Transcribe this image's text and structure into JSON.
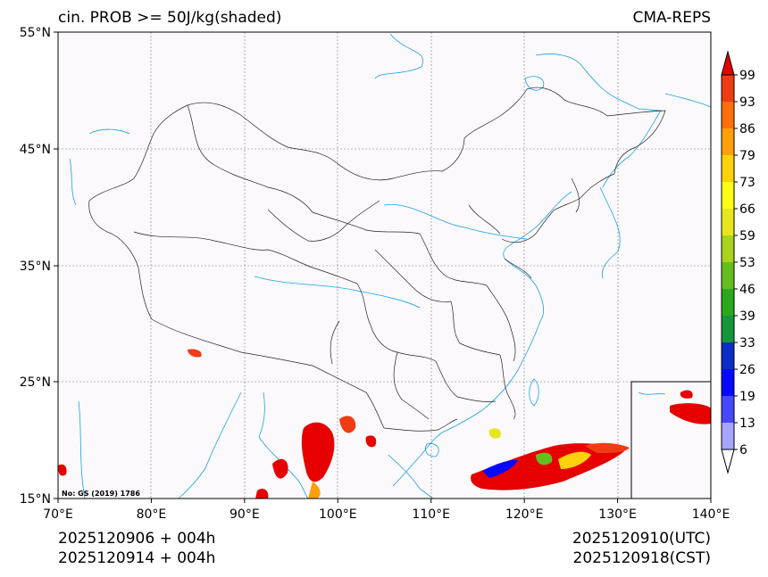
{
  "header": {
    "title": "cin. PROB >= 50J/kg(shaded)",
    "model": "CMA-REPS"
  },
  "axes": {
    "lat_labels": [
      "55°N",
      "45°N",
      "35°N",
      "25°N",
      "15°N"
    ],
    "lon_labels": [
      "70°E",
      "80°E",
      "90°E",
      "100°E",
      "110°E",
      "120°E",
      "130°E",
      "140°E"
    ]
  },
  "map": {
    "approval_no": "No: GS (2019) 1786",
    "colors": {
      "background": "#fbf9fc",
      "coast": "#1aa0e0",
      "border": "#222222",
      "grid": "#777777"
    }
  },
  "colorbar": {
    "labels": [
      "6",
      "13",
      "19",
      "26",
      "33",
      "39",
      "46",
      "53",
      "59",
      "66",
      "73",
      "79",
      "86",
      "93",
      "99"
    ],
    "colors": [
      "#ffffff",
      "#a6a6ff",
      "#4848ff",
      "#0808ff",
      "#0a2dc8",
      "#16963a",
      "#2aa81e",
      "#64be1e",
      "#a8d21c",
      "#e6e61e",
      "#ffff14",
      "#ffd20a",
      "#ffa00a",
      "#ff6e0a",
      "#f03c14",
      "#e60000"
    ]
  },
  "footer": {
    "init_utc": "2025120906  +  004h",
    "init_cst": "2025120914  +  004h",
    "valid_utc": "2025120910(UTC)",
    "valid_cst": "2025120918(CST)"
  }
}
